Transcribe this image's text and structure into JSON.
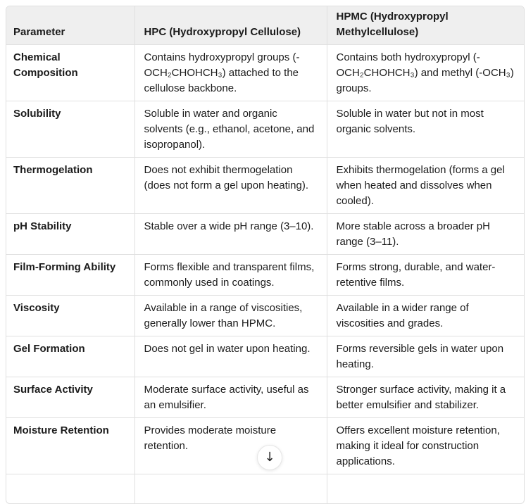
{
  "colors": {
    "background": "#ffffff",
    "header_bg": "#efefef",
    "border": "#e0e0e0",
    "text": "#1b1b1b"
  },
  "table": {
    "columns": [
      "Parameter",
      "HPC (Hydroxypropyl Cellulose)",
      "HPMC (Hydroxypropyl Methylcellulose)"
    ],
    "rows": [
      {
        "parameter": "Chemical Composition",
        "hpc": "Contains hydroxypropyl groups (-OCH₂CHOHCH₃) attached to the cellulose backbone.",
        "hpmc": "Contains both hydroxypropyl (-OCH₂CHOHCH₃) and methyl (-OCH₃) groups."
      },
      {
        "parameter": "Solubility",
        "hpc": "Soluble in water and organic solvents (e.g., ethanol, acetone, and isopropanol).",
        "hpmc": "Soluble in water but not in most organic solvents."
      },
      {
        "parameter": "Thermogelation",
        "hpc": "Does not exhibit thermogelation (does not form a gel upon heating).",
        "hpmc": "Exhibits thermogelation (forms a gel when heated and dissolves when cooled)."
      },
      {
        "parameter": "pH Stability",
        "hpc": "Stable over a wide pH range (3–10).",
        "hpmc": "More stable across a broader pH range (3–11)."
      },
      {
        "parameter": "Film-Forming Ability",
        "hpc": "Forms flexible and transparent films, commonly used in coatings.",
        "hpmc": "Forms strong, durable, and water-retentive films."
      },
      {
        "parameter": "Viscosity",
        "hpc": "Available in a range of viscosities, generally lower than HPMC.",
        "hpmc": "Available in a wider range of viscosities and grades."
      },
      {
        "parameter": "Gel Formation",
        "hpc": "Does not gel in water upon heating.",
        "hpmc": "Forms reversible gels in water upon heating."
      },
      {
        "parameter": "Surface Activity",
        "hpc": "Moderate surface activity, useful as an emulsifier.",
        "hpmc": "Stronger surface activity, making it a better emulsifier and stabilizer."
      },
      {
        "parameter": "Moisture Retention",
        "hpc": "Provides moderate moisture retention.",
        "hpmc": "Offers excellent moisture retention, making it ideal for construction applications."
      }
    ]
  },
  "scroll_button": {
    "icon": "arrow-down",
    "glyph": "↓"
  }
}
